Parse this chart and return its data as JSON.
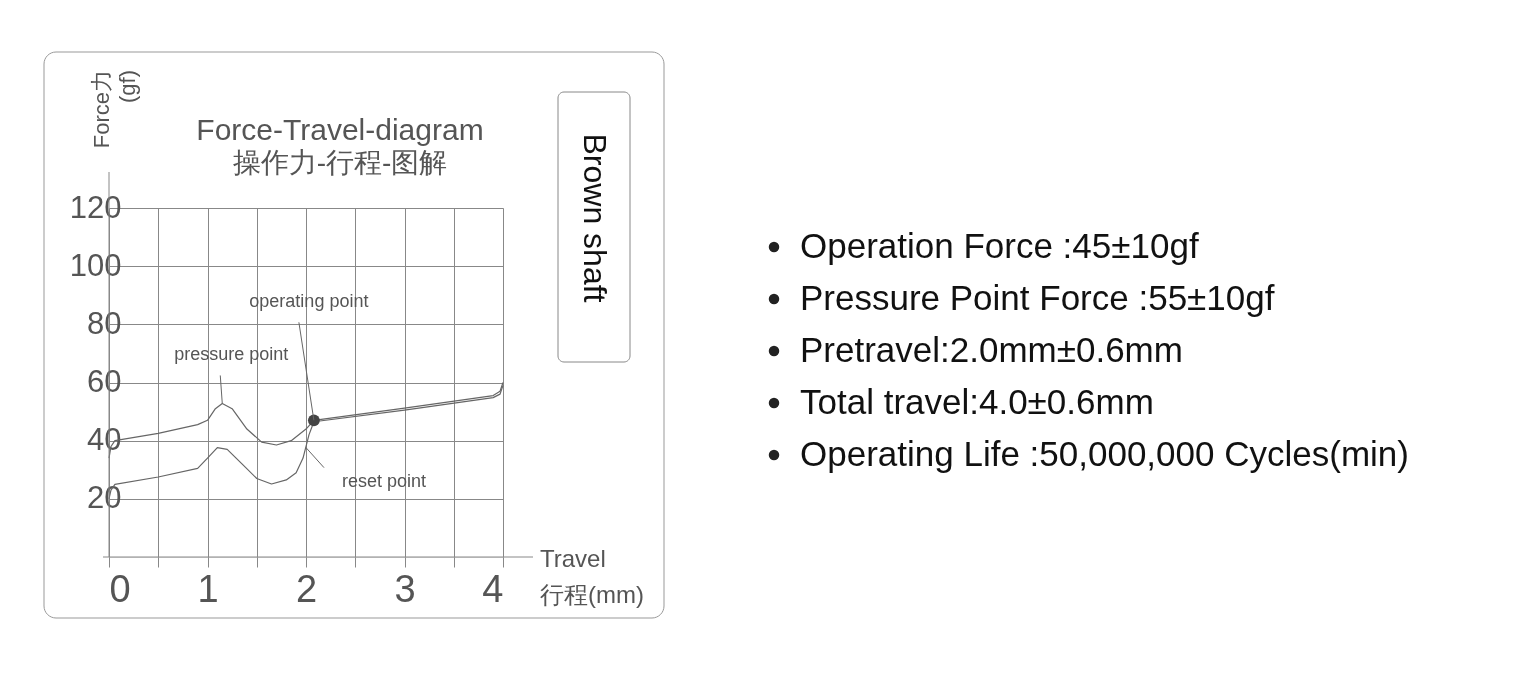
{
  "chart_data": {
    "type": "line",
    "title": "Force-Travel-diagram",
    "subtitle": "操作力-行程-图解",
    "xlabel": "Travel 行程(mm)",
    "ylabel": "Force力 (gf)",
    "xlim": [
      0,
      4
    ],
    "xticks": [
      0,
      {
        "value": 0.5,
        "label": null
      },
      1,
      {
        "value": 1.5,
        "label": null
      },
      2,
      {
        "value": 2.5,
        "label": null
      },
      3,
      {
        "value": 3.5,
        "label": null
      },
      4
    ],
    "ylim": [
      0,
      120
    ],
    "yticks": [
      20,
      40,
      60,
      80,
      100,
      120
    ],
    "grid": true,
    "line_style": "solid",
    "series": [
      {
        "color": "#666666",
        "x": [
          0,
          0.02,
          0.06,
          0.5,
          0.9,
          1.0,
          1.08,
          1.15,
          1.25,
          1.4,
          1.55,
          1.7,
          1.85,
          2.0,
          2.08,
          3.0,
          3.9,
          3.97,
          4.0
        ],
        "values": [
          34,
          38,
          40,
          42.5,
          45.5,
          47,
          51,
          52.8,
          51,
          44,
          39.5,
          38.5,
          40,
          44,
          47,
          51.2,
          55.5,
          57,
          60
        ]
      },
      {
        "color": "#666666",
        "x": [
          0,
          0.02,
          0.06,
          0.5,
          0.9,
          1.0,
          1.1,
          1.2,
          1.35,
          1.5,
          1.65,
          1.8,
          1.9,
          1.97,
          2.03,
          2.08,
          3.0,
          3.9,
          3.97,
          4.0
        ],
        "values": [
          20,
          23,
          25,
          27.5,
          30.5,
          34,
          37.6,
          37,
          32,
          27,
          25.1,
          26.5,
          29,
          34,
          42,
          46.5,
          50.5,
          54.8,
          56,
          59
        ]
      },
      {
        "type": "scatter",
        "marker": "circle",
        "color": "#444444",
        "x": [
          2.08
        ],
        "values": [
          47
        ]
      }
    ],
    "annotations": [
      {
        "text": "operating point",
        "x": 2.08,
        "y": 47
      },
      {
        "text": "pressure point",
        "x": 1.15,
        "y": 52.8
      },
      {
        "text": "reset point",
        "x": 2.0,
        "y": 37.6
      },
      "Brown shaft",
      "Operation Force :45±10gf",
      "Pressure Point Force :55±10gf",
      "Pretravel:2.0mm±0.6mm",
      "Total travel:4.0±0.6mm",
      "Operating Life :50,000,000 Cycles(min)"
    ]
  }
}
